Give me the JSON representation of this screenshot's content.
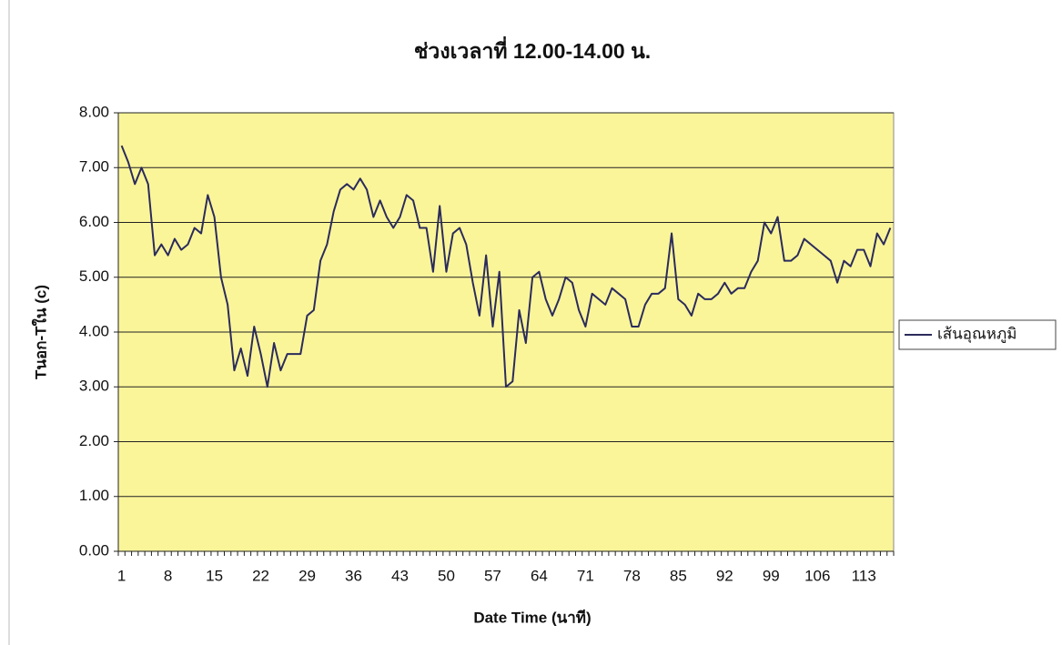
{
  "chart_data": {
    "type": "line",
    "title": "ช่วงเวลาที่ 12.00-14.00 น.",
    "y_label": "Tนอก-Tใน (c)",
    "x_label": "Date Time (นาที)",
    "categories": [
      "1",
      null,
      null,
      null,
      null,
      null,
      null,
      "8",
      null,
      null,
      null,
      null,
      null,
      null,
      "15",
      null,
      null,
      null,
      null,
      null,
      null,
      "22",
      null,
      null,
      null,
      null,
      null,
      null,
      "29",
      null,
      null,
      null,
      null,
      null,
      null,
      "36",
      null,
      null,
      null,
      null,
      null,
      null,
      "43",
      null,
      null,
      null,
      null,
      null,
      null,
      "50",
      null,
      null,
      null,
      null,
      null,
      null,
      "57",
      null,
      null,
      null,
      null,
      null,
      null,
      "64",
      null,
      null,
      null,
      null,
      null,
      null,
      "71",
      null,
      null,
      null,
      null,
      null,
      null,
      "78",
      null,
      null,
      null,
      null,
      null,
      null,
      "85",
      null,
      null,
      null,
      null,
      null,
      null,
      "92",
      null,
      null,
      null,
      null,
      null,
      null,
      "99",
      null,
      null,
      null,
      null,
      null,
      null,
      "106",
      null,
      null,
      null,
      null,
      null,
      null,
      "113",
      null,
      null,
      null,
      null
    ],
    "series": [
      {
        "name": "เส้นอุณหภูมิ",
        "color": "#2b2b5c",
        "values": [
          7.4,
          7.1,
          6.7,
          7.0,
          6.7,
          5.4,
          5.6,
          5.4,
          5.7,
          5.5,
          5.6,
          5.9,
          5.8,
          6.5,
          6.1,
          5.0,
          4.5,
          3.3,
          3.7,
          3.2,
          4.1,
          3.6,
          3.0,
          3.8,
          3.3,
          3.6,
          3.6,
          3.6,
          4.3,
          4.4,
          5.3,
          5.6,
          6.2,
          6.6,
          6.7,
          6.6,
          6.8,
          6.6,
          6.1,
          6.4,
          6.1,
          5.9,
          6.1,
          6.5,
          6.4,
          5.9,
          5.9,
          5.1,
          6.3,
          5.1,
          5.8,
          5.9,
          5.6,
          4.9,
          4.3,
          5.4,
          4.1,
          5.1,
          3.0,
          3.1,
          4.4,
          3.8,
          5.0,
          5.1,
          4.6,
          4.3,
          4.6,
          5.0,
          4.9,
          4.4,
          4.1,
          4.7,
          4.6,
          4.5,
          4.8,
          4.7,
          4.6,
          4.1,
          4.1,
          4.5,
          4.7,
          4.7,
          4.8,
          5.8,
          4.6,
          4.5,
          4.3,
          4.7,
          4.6,
          4.6,
          4.7,
          4.9,
          4.7,
          4.8,
          4.8,
          5.1,
          5.3,
          6.0,
          5.8,
          6.1,
          5.3,
          5.3,
          5.4,
          5.7,
          5.6,
          5.5,
          5.4,
          5.3,
          4.9,
          5.3,
          5.2,
          5.5,
          5.5,
          5.2,
          5.8,
          5.6,
          5.9
        ]
      }
    ],
    "ylim": [
      0,
      8
    ],
    "yticks": [
      {
        "value": 0,
        "label": "0.00"
      },
      {
        "value": 1,
        "label": "1.00"
      },
      {
        "value": 2,
        "label": "2.00"
      },
      {
        "value": 3,
        "label": "3.00"
      },
      {
        "value": 4,
        "label": "4.00"
      },
      {
        "value": 5,
        "label": "5.00"
      },
      {
        "value": 6,
        "label": "6.00"
      },
      {
        "value": 7,
        "label": "7.00"
      },
      {
        "value": 8,
        "label": "8.00"
      }
    ],
    "grid": true,
    "plot_background": "#fbf59a",
    "legend": "right"
  }
}
